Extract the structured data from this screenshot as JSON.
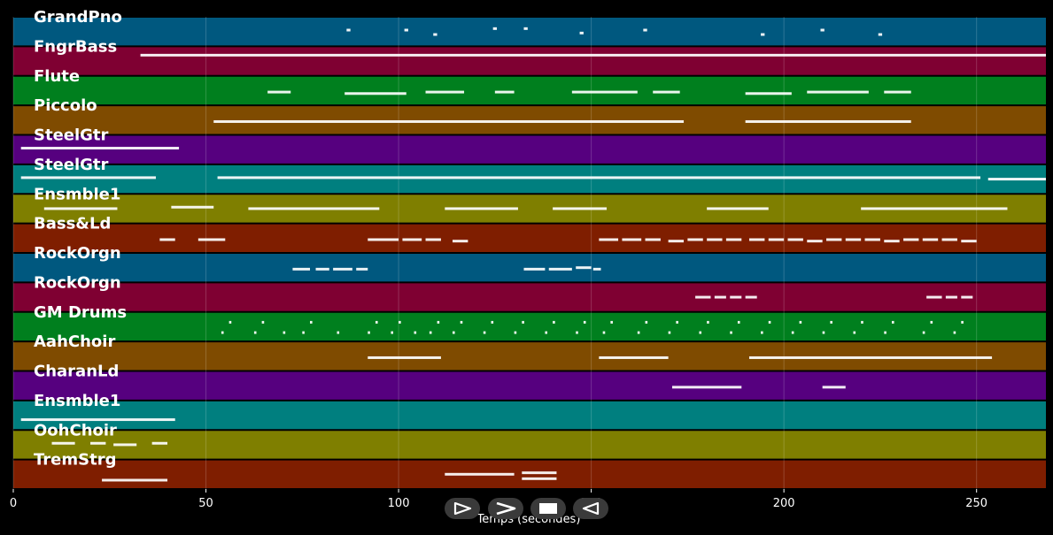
{
  "chart_data": {
    "type": "piano-roll",
    "xlabel": "Temps (secondes)",
    "xlim": [
      0,
      268
    ],
    "xticks": [
      0,
      50,
      100,
      150,
      200,
      250
    ],
    "grid": true,
    "tracks": [
      {
        "name": "GrandPno",
        "color": "#00587f",
        "notes": [
          [
            86.5,
            87.5,
            0.55
          ],
          [
            101.5,
            102.5,
            0.55
          ],
          [
            109,
            110,
            0.4
          ],
          [
            124.5,
            125.5,
            0.6
          ],
          [
            132.5,
            133.5,
            0.6
          ],
          [
            147,
            148,
            0.45
          ],
          [
            163.5,
            164.5,
            0.55
          ],
          [
            194,
            195,
            0.4
          ],
          [
            209.5,
            210.5,
            0.55
          ],
          [
            224.5,
            225.5,
            0.4
          ]
        ]
      },
      {
        "name": "FngrBass",
        "color": "#7f0032",
        "notes": [
          [
            33,
            268,
            0.7
          ]
        ]
      },
      {
        "name": "Flute",
        "color": "#007f1e",
        "notes": [
          [
            66,
            72,
            0.45
          ],
          [
            86,
            102,
            0.4
          ],
          [
            107,
            117,
            0.45
          ],
          [
            125,
            130,
            0.45
          ],
          [
            145,
            162,
            0.45
          ],
          [
            166,
            173,
            0.45
          ],
          [
            190,
            202,
            0.4
          ],
          [
            206,
            222,
            0.45
          ],
          [
            226,
            233,
            0.45
          ]
        ]
      },
      {
        "name": "Piccolo",
        "color": "#7f4b00",
        "notes": [
          [
            52,
            174,
            0.45
          ],
          [
            190,
            233,
            0.45
          ]
        ]
      },
      {
        "name": "SteelGtr",
        "color": "#56007f",
        "notes": [
          [
            2,
            43,
            0.55
          ]
        ]
      },
      {
        "name": "SteelGtr",
        "color": "#007f7f",
        "notes": [
          [
            2,
            37,
            0.55
          ],
          [
            53,
            251,
            0.55
          ],
          [
            253,
            268,
            0.5
          ]
        ]
      },
      {
        "name": "Ensmble1",
        "color": "#7f7f00",
        "notes": [
          [
            8,
            27,
            0.5
          ],
          [
            41,
            52,
            0.55
          ],
          [
            61,
            95,
            0.5
          ],
          [
            112,
            131,
            0.5
          ],
          [
            140,
            154,
            0.5
          ],
          [
            180,
            196,
            0.5
          ],
          [
            220,
            258,
            0.5
          ]
        ]
      },
      {
        "name": "Bass&Ld",
        "color": "#7f1e00",
        "notes": [
          [
            38,
            42,
            0.45
          ],
          [
            48,
            55,
            0.45
          ],
          [
            92,
            100,
            0.45
          ],
          [
            101,
            106,
            0.45
          ],
          [
            107,
            111,
            0.45
          ],
          [
            114,
            118,
            0.4
          ],
          [
            152,
            157,
            0.45
          ],
          [
            158,
            163,
            0.45
          ],
          [
            164,
            168,
            0.45
          ],
          [
            170,
            174,
            0.4
          ],
          [
            175,
            179,
            0.45
          ],
          [
            180,
            184,
            0.45
          ],
          [
            185,
            189,
            0.45
          ],
          [
            191,
            195,
            0.45
          ],
          [
            196,
            200,
            0.45
          ],
          [
            201,
            205,
            0.45
          ],
          [
            206,
            210,
            0.4
          ],
          [
            211,
            215,
            0.45
          ],
          [
            216,
            220,
            0.45
          ],
          [
            221,
            225,
            0.45
          ],
          [
            226,
            230,
            0.4
          ],
          [
            231,
            235,
            0.45
          ],
          [
            236,
            240,
            0.45
          ],
          [
            241,
            245,
            0.45
          ],
          [
            246,
            250,
            0.4
          ]
        ]
      },
      {
        "name": "RockOrgn",
        "color": "#00587f",
        "notes": [
          [
            72.5,
            77,
            0.45
          ],
          [
            78.5,
            82,
            0.45
          ],
          [
            83,
            88,
            0.45
          ],
          [
            89,
            92,
            0.45
          ],
          [
            132.5,
            138,
            0.45
          ],
          [
            139,
            145,
            0.45
          ],
          [
            146,
            150,
            0.5
          ],
          [
            150.5,
            152.5,
            0.45
          ]
        ]
      },
      {
        "name": "RockOrgn",
        "color": "#7f0032",
        "notes": [
          [
            177,
            181,
            0.5
          ],
          [
            182,
            185,
            0.5
          ],
          [
            186,
            189,
            0.5
          ],
          [
            190,
            193,
            0.5
          ],
          [
            237,
            241,
            0.5
          ],
          [
            242,
            245,
            0.5
          ],
          [
            246,
            249,
            0.5
          ]
        ]
      },
      {
        "name": "GM Drums",
        "color": "#007f1e",
        "notes": [
          [
            54,
            54.6,
            0.3
          ],
          [
            56,
            56.6,
            0.65
          ],
          [
            62.5,
            63.1,
            0.3
          ],
          [
            64.5,
            65.1,
            0.65
          ],
          [
            70,
            70.6,
            0.3
          ],
          [
            75,
            75.6,
            0.3
          ],
          [
            77,
            77.6,
            0.65
          ],
          [
            84,
            84.6,
            0.3
          ],
          [
            92,
            92.6,
            0.3
          ],
          [
            94,
            94.6,
            0.65
          ],
          [
            98,
            98.6,
            0.3
          ],
          [
            100,
            100.6,
            0.65
          ],
          [
            104,
            104.6,
            0.3
          ],
          [
            108,
            108.6,
            0.3
          ],
          [
            110,
            110.6,
            0.65
          ],
          [
            114,
            114.6,
            0.3
          ],
          [
            116,
            116.6,
            0.65
          ],
          [
            122,
            122.6,
            0.3
          ],
          [
            124,
            124.6,
            0.65
          ],
          [
            130,
            130.6,
            0.3
          ],
          [
            132,
            132.6,
            0.65
          ],
          [
            138,
            138.6,
            0.3
          ],
          [
            140,
            140.6,
            0.65
          ],
          [
            146,
            146.6,
            0.3
          ],
          [
            148,
            148.6,
            0.65
          ],
          [
            153,
            153.6,
            0.3
          ],
          [
            155,
            155.6,
            0.65
          ],
          [
            162,
            162.6,
            0.3
          ],
          [
            164,
            164.6,
            0.65
          ],
          [
            170,
            170.6,
            0.3
          ],
          [
            172,
            172.6,
            0.65
          ],
          [
            178,
            178.6,
            0.3
          ],
          [
            180,
            180.6,
            0.65
          ],
          [
            186,
            186.6,
            0.3
          ],
          [
            188,
            188.6,
            0.65
          ],
          [
            194,
            194.6,
            0.3
          ],
          [
            196,
            196.6,
            0.65
          ],
          [
            202,
            202.6,
            0.3
          ],
          [
            204,
            204.6,
            0.65
          ],
          [
            210,
            210.6,
            0.3
          ],
          [
            212,
            212.6,
            0.65
          ],
          [
            218,
            218.6,
            0.3
          ],
          [
            220,
            220.6,
            0.65
          ],
          [
            226,
            226.6,
            0.3
          ],
          [
            228,
            228.6,
            0.65
          ],
          [
            236,
            236.6,
            0.3
          ],
          [
            238,
            238.6,
            0.65
          ],
          [
            244,
            244.6,
            0.3
          ],
          [
            246,
            246.6,
            0.65
          ]
        ]
      },
      {
        "name": "AahChoir",
        "color": "#7f4b00",
        "notes": [
          [
            92,
            111,
            0.45
          ],
          [
            152,
            170,
            0.45
          ],
          [
            191,
            254,
            0.45
          ]
        ]
      },
      {
        "name": "CharanLd",
        "color": "#56007f",
        "notes": [
          [
            171,
            189,
            0.45
          ],
          [
            210,
            216,
            0.45
          ]
        ]
      },
      {
        "name": "Ensmble1",
        "color": "#007f7f",
        "notes": [
          [
            2,
            42,
            0.35
          ]
        ]
      },
      {
        "name": "OohChoir",
        "color": "#7f7f00",
        "notes": [
          [
            10,
            16,
            0.55
          ],
          [
            20,
            24,
            0.55
          ],
          [
            26,
            32,
            0.5
          ],
          [
            36,
            40,
            0.55
          ]
        ]
      },
      {
        "name": "TremStrg",
        "color": "#7f1e00",
        "notes": [
          [
            23,
            40,
            0.3
          ],
          [
            112,
            130,
            0.5
          ],
          [
            132,
            141,
            0.35
          ],
          [
            132,
            141,
            0.55
          ]
        ]
      }
    ]
  },
  "controls": {
    "play_icon": "play-icon",
    "forward_icon": "forward-icon",
    "stop_icon": "stop-icon",
    "rewind_icon": "rewind-icon"
  }
}
